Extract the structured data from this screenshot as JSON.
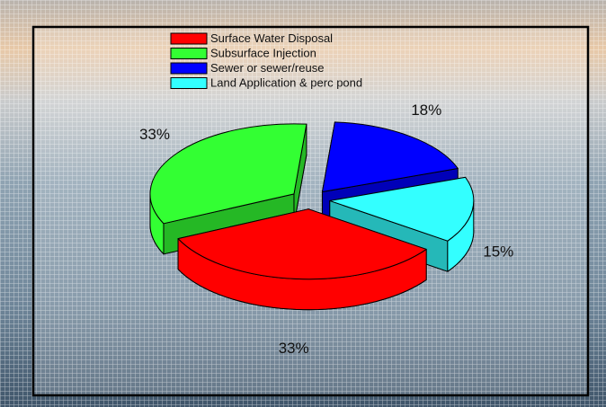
{
  "chart_data": {
    "type": "pie",
    "categories": [
      "Sewer or sewer/reuse",
      "Land Application & perc pond",
      "Surface Water Disposal",
      "Subsurface Injection"
    ],
    "values": [
      18,
      15,
      33,
      33
    ],
    "value_labels": [
      "18%",
      "15%",
      "33%",
      "33%"
    ],
    "colors": [
      "#0000ff",
      "#33ffff",
      "#ff0000",
      "#33ff33"
    ],
    "legend_order": [
      2,
      3,
      0,
      1
    ]
  }
}
